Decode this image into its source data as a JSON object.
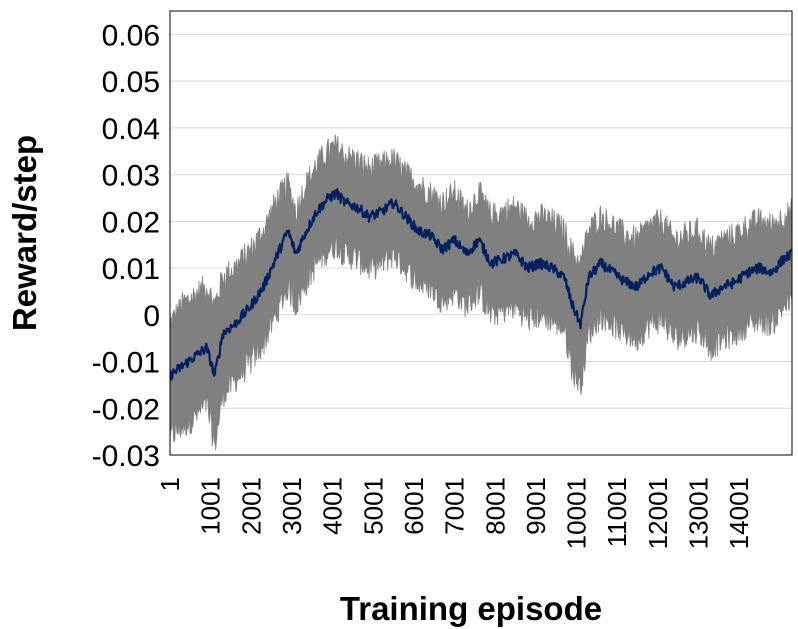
{
  "chart_data": {
    "type": "line",
    "xlabel": "Training episode",
    "ylabel": "Reward/step",
    "xlim": [
      1,
      15300
    ],
    "ylim": [
      -0.03,
      0.065
    ],
    "y_ticks": [
      "0.06",
      "0.05",
      "0.04",
      "0.03",
      "0.02",
      "0.01",
      "0",
      "-0.01",
      "-0.02",
      "-0.03"
    ],
    "y_tick_values": [
      0.06,
      0.05,
      0.04,
      0.03,
      0.02,
      0.01,
      0,
      -0.01,
      -0.02,
      -0.03
    ],
    "x_ticks": [
      "1",
      "1001",
      "2001",
      "3001",
      "4001",
      "5001",
      "6001",
      "7001",
      "8001",
      "9001",
      "10001",
      "11001",
      "12001",
      "13001",
      "14001"
    ],
    "x_tick_values": [
      1,
      1001,
      2001,
      3001,
      4001,
      5001,
      6001,
      7001,
      8001,
      9001,
      10001,
      11001,
      12001,
      13001,
      14001
    ],
    "grid": {
      "horizontal": true,
      "vertical": false
    },
    "legend": "none",
    "series": [
      {
        "color": "#002060",
        "x": [
          1,
          300,
          600,
          900,
          1100,
          1300,
          1600,
          2000,
          2300,
          2600,
          2900,
          3100,
          3300,
          3600,
          3900,
          4100,
          4300,
          4600,
          4900,
          5200,
          5500,
          5800,
          6100,
          6400,
          6700,
          7000,
          7300,
          7600,
          7900,
          8200,
          8500,
          8800,
          9100,
          9400,
          9700,
          9900,
          10100,
          10300,
          10600,
          10900,
          11200,
          11500,
          11800,
          12100,
          12400,
          12700,
          13000,
          13300,
          13600,
          13900,
          14200,
          14500,
          14800,
          15100,
          15300
        ],
        "y": [
          -0.013,
          -0.011,
          -0.009,
          -0.007,
          -0.013,
          -0.004,
          -0.002,
          0.002,
          0.006,
          0.012,
          0.018,
          0.013,
          0.017,
          0.022,
          0.025,
          0.026,
          0.024,
          0.023,
          0.021,
          0.022,
          0.024,
          0.021,
          0.018,
          0.017,
          0.014,
          0.016,
          0.013,
          0.016,
          0.011,
          0.012,
          0.013,
          0.01,
          0.011,
          0.01,
          0.008,
          0.002,
          -0.002,
          0.008,
          0.011,
          0.009,
          0.007,
          0.006,
          0.009,
          0.01,
          0.006,
          0.007,
          0.008,
          0.004,
          0.006,
          0.007,
          0.009,
          0.01,
          0.009,
          0.012,
          0.013
        ]
      },
      {
        "color": "#808080",
        "type": "band",
        "x": [
          1,
          300,
          600,
          900,
          1100,
          1300,
          1600,
          2000,
          2300,
          2600,
          2900,
          3100,
          3300,
          3600,
          3900,
          4100,
          4300,
          4600,
          4900,
          5200,
          5500,
          5800,
          6100,
          6400,
          6700,
          7000,
          7300,
          7600,
          7900,
          8200,
          8500,
          8800,
          9100,
          9400,
          9700,
          9900,
          10100,
          10300,
          10600,
          10900,
          11200,
          11500,
          11800,
          12100,
          12400,
          12700,
          13000,
          13300,
          13600,
          13900,
          14200,
          14500,
          14800,
          15100,
          15300
        ],
        "upper": [
          -0.002,
          0.002,
          0.004,
          0.006,
          0.002,
          0.008,
          0.01,
          0.014,
          0.018,
          0.024,
          0.028,
          0.022,
          0.027,
          0.032,
          0.035,
          0.036,
          0.034,
          0.033,
          0.031,
          0.032,
          0.033,
          0.03,
          0.028,
          0.026,
          0.024,
          0.026,
          0.022,
          0.026,
          0.021,
          0.022,
          0.023,
          0.02,
          0.021,
          0.02,
          0.018,
          0.013,
          0.011,
          0.018,
          0.021,
          0.019,
          0.017,
          0.016,
          0.019,
          0.02,
          0.016,
          0.017,
          0.018,
          0.014,
          0.016,
          0.017,
          0.019,
          0.02,
          0.019,
          0.021,
          0.022
        ],
        "lower": [
          -0.026,
          -0.024,
          -0.022,
          -0.019,
          -0.028,
          -0.017,
          -0.014,
          -0.01,
          -0.006,
          0.0,
          0.006,
          0.002,
          0.006,
          0.011,
          0.014,
          0.015,
          0.013,
          0.012,
          0.01,
          0.011,
          0.013,
          0.01,
          0.007,
          0.006,
          0.003,
          0.005,
          0.002,
          0.005,
          0.0,
          0.001,
          0.002,
          -0.001,
          0.0,
          -0.001,
          -0.003,
          -0.012,
          -0.015,
          -0.004,
          0.0,
          -0.002,
          -0.004,
          -0.005,
          -0.002,
          -0.001,
          -0.005,
          -0.004,
          -0.003,
          -0.007,
          -0.005,
          -0.004,
          -0.002,
          -0.001,
          -0.002,
          0.002,
          0.003
        ]
      }
    ]
  }
}
